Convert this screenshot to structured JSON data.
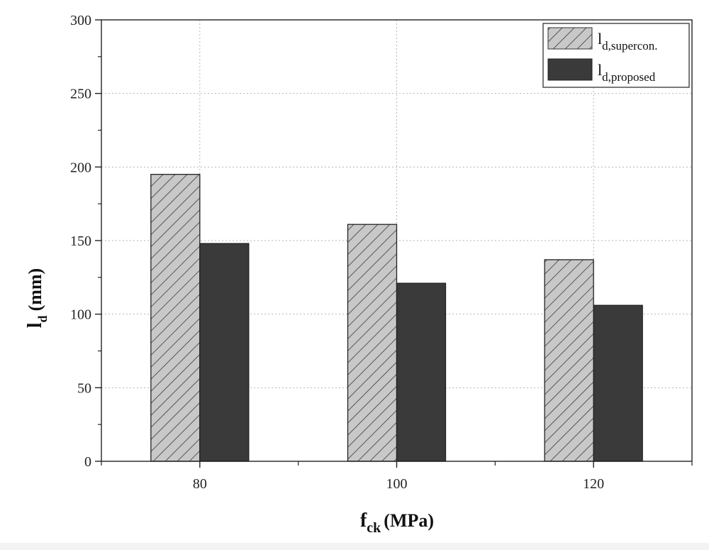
{
  "chart_data": {
    "type": "bar",
    "categories": [
      "80",
      "100",
      "120"
    ],
    "series": [
      {
        "name": "d,supercon.",
        "values": [
          195,
          161,
          137
        ],
        "pattern": "hatched",
        "fill": "#c8c8c8"
      },
      {
        "name": "d,proposed",
        "values": [
          148,
          121,
          106
        ],
        "pattern": "solid",
        "fill": "#3a3a3a"
      }
    ],
    "xlabel": {
      "main": "f",
      "sub": "ck",
      "unit": "(MPa)"
    },
    "ylabel": {
      "main": "l",
      "sub": "d",
      "unit": "(mm)"
    },
    "ylim": [
      0,
      300
    ],
    "yticks": [
      0,
      50,
      100,
      150,
      200,
      250,
      300
    ],
    "grid": true,
    "legend": {
      "position": "top-right",
      "prefix": "l"
    }
  }
}
